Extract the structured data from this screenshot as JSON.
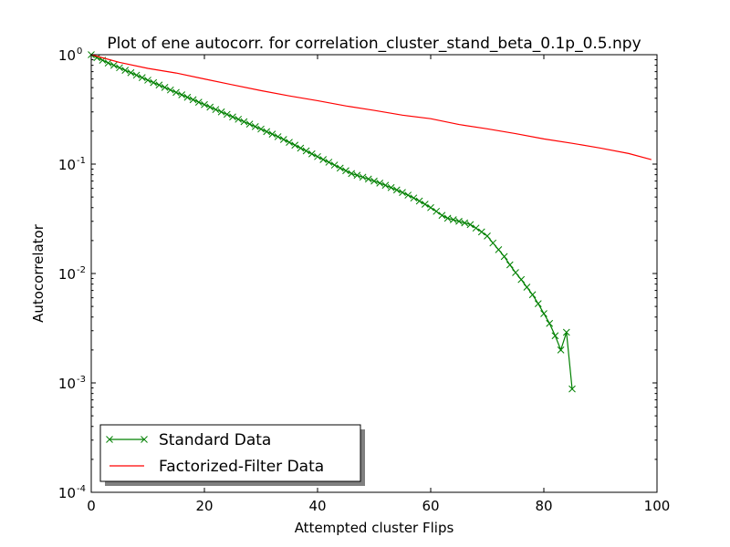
{
  "chart_data": {
    "type": "line",
    "title": "Plot of ene autocorr. for correlation_cluster_stand_beta_0.1p_0.5.npy",
    "xlabel": "Attempted cluster Flips",
    "ylabel": "Autocorrelator",
    "xlim": [
      0,
      100
    ],
    "ylim": [
      0.0001,
      1
    ],
    "yscale": "log",
    "xticks": [
      0,
      20,
      40,
      60,
      80,
      100
    ],
    "xtick_labels": [
      "0",
      "20",
      "40",
      "60",
      "80",
      "100"
    ],
    "yticks": [
      0.0001,
      0.001,
      0.01,
      0.1,
      1
    ],
    "ytick_labels": [
      {
        "base": "10",
        "exp": "-4"
      },
      {
        "base": "10",
        "exp": "-3"
      },
      {
        "base": "10",
        "exp": "-2"
      },
      {
        "base": "10",
        "exp": "-1"
      },
      {
        "base": "10",
        "exp": "0"
      }
    ],
    "grid": false,
    "legend_position": "lower-left",
    "series": [
      {
        "name": "Standard Data",
        "color": "#008000",
        "marker": "x",
        "x": [
          0,
          1,
          2,
          3,
          4,
          5,
          6,
          7,
          8,
          9,
          10,
          11,
          12,
          13,
          14,
          15,
          16,
          17,
          18,
          19,
          20,
          21,
          22,
          23,
          24,
          25,
          26,
          27,
          28,
          29,
          30,
          31,
          32,
          33,
          34,
          35,
          36,
          37,
          38,
          39,
          40,
          41,
          42,
          43,
          44,
          45,
          46,
          47,
          48,
          49,
          50,
          51,
          52,
          53,
          54,
          55,
          56,
          57,
          58,
          59,
          60,
          61,
          62,
          63,
          64,
          65,
          66,
          67,
          68,
          69,
          70,
          71,
          72,
          73,
          74,
          75,
          76,
          77,
          78,
          79,
          80,
          81,
          82,
          83,
          84,
          85
        ],
        "y": [
          1.0,
          0.94,
          0.89,
          0.84,
          0.8,
          0.76,
          0.72,
          0.685,
          0.65,
          0.617,
          0.585,
          0.556,
          0.528,
          0.502,
          0.476,
          0.452,
          0.43,
          0.408,
          0.388,
          0.368,
          0.35,
          0.332,
          0.315,
          0.3,
          0.285,
          0.27,
          0.257,
          0.244,
          0.232,
          0.22,
          0.209,
          0.198,
          0.188,
          0.178,
          0.168,
          0.158,
          0.149,
          0.14,
          0.132,
          0.124,
          0.117,
          0.11,
          0.104,
          0.098,
          0.092,
          0.087,
          0.082,
          0.079,
          0.076,
          0.073,
          0.07,
          0.067,
          0.064,
          0.061,
          0.058,
          0.055,
          0.052,
          0.049,
          0.046,
          0.043,
          0.04,
          0.037,
          0.034,
          0.032,
          0.031,
          0.03,
          0.029,
          0.028,
          0.026,
          0.024,
          0.022,
          0.019,
          0.0165,
          0.0143,
          0.012,
          0.0102,
          0.0088,
          0.0075,
          0.0064,
          0.0053,
          0.0043,
          0.0035,
          0.0027,
          0.002,
          0.0029,
          0.00088
        ]
      },
      {
        "name": "Factorized-Filter Data",
        "color": "#ff0000",
        "marker": "none",
        "x": [
          0,
          5,
          10,
          15,
          20,
          25,
          30,
          35,
          40,
          45,
          50,
          55,
          60,
          65,
          70,
          75,
          80,
          85,
          90,
          95,
          99
        ],
        "y": [
          1.0,
          0.85,
          0.75,
          0.68,
          0.6,
          0.53,
          0.47,
          0.42,
          0.38,
          0.34,
          0.31,
          0.28,
          0.26,
          0.23,
          0.21,
          0.19,
          0.17,
          0.155,
          0.14,
          0.125,
          0.11
        ]
      }
    ]
  }
}
